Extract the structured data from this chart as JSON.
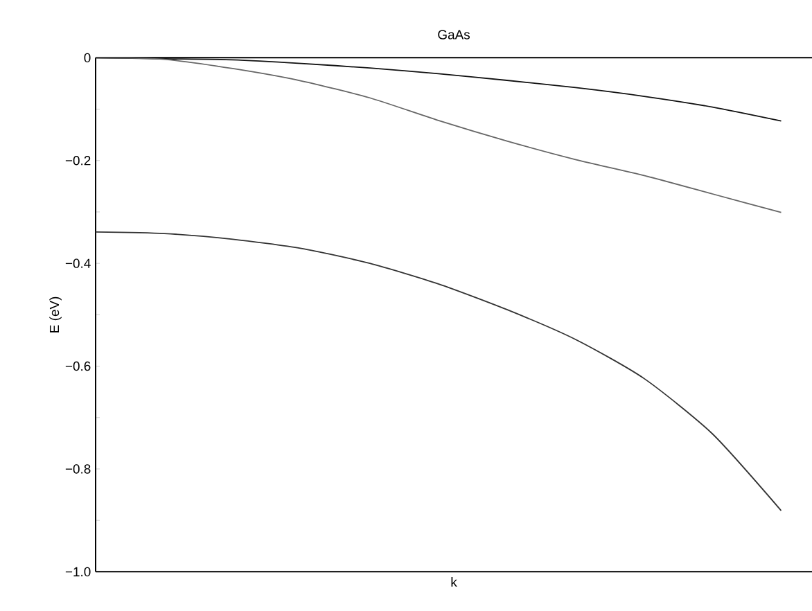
{
  "chart_data": {
    "type": "line",
    "title": "GaAs",
    "xlabel": "k",
    "ylabel": "E (eV)",
    "categories": [
      null,
      null,
      null,
      null,
      null,
      null,
      null,
      null,
      null,
      null,
      null
    ],
    "series": [
      {
        "color": "#111111",
        "values": [
          0,
          -0.002,
          -0.004,
          -0.011,
          -0.02,
          -0.031,
          -0.044,
          -0.058,
          -0.075,
          -0.096,
          -0.123
        ]
      },
      {
        "color": "#666666",
        "values": [
          0,
          -0.003,
          -0.021,
          -0.045,
          -0.078,
          -0.122,
          -0.162,
          -0.198,
          -0.229,
          -0.265,
          -0.301
        ]
      },
      {
        "color": "#333333",
        "values": [
          -0.339,
          -0.342,
          -0.353,
          -0.371,
          -0.4,
          -0.44,
          -0.49,
          -0.548,
          -0.624,
          -0.732,
          -0.881
        ]
      }
    ],
    "ylim": [
      -1.0,
      0
    ],
    "yticks": [
      {
        "value": -1.0,
        "label": "−1.0"
      },
      {
        "value": -0.9,
        "label": null
      },
      {
        "value": -0.8,
        "label": "−0.8"
      },
      {
        "value": -0.7,
        "label": null
      },
      {
        "value": -0.6,
        "label": "−0.6"
      },
      {
        "value": -0.5,
        "label": null
      },
      {
        "value": -0.4,
        "label": "−0.4"
      },
      {
        "value": -0.3,
        "label": null
      },
      {
        "value": -0.2,
        "label": "−0.2"
      },
      {
        "value": -0.1,
        "label": null
      },
      0
    ]
  }
}
